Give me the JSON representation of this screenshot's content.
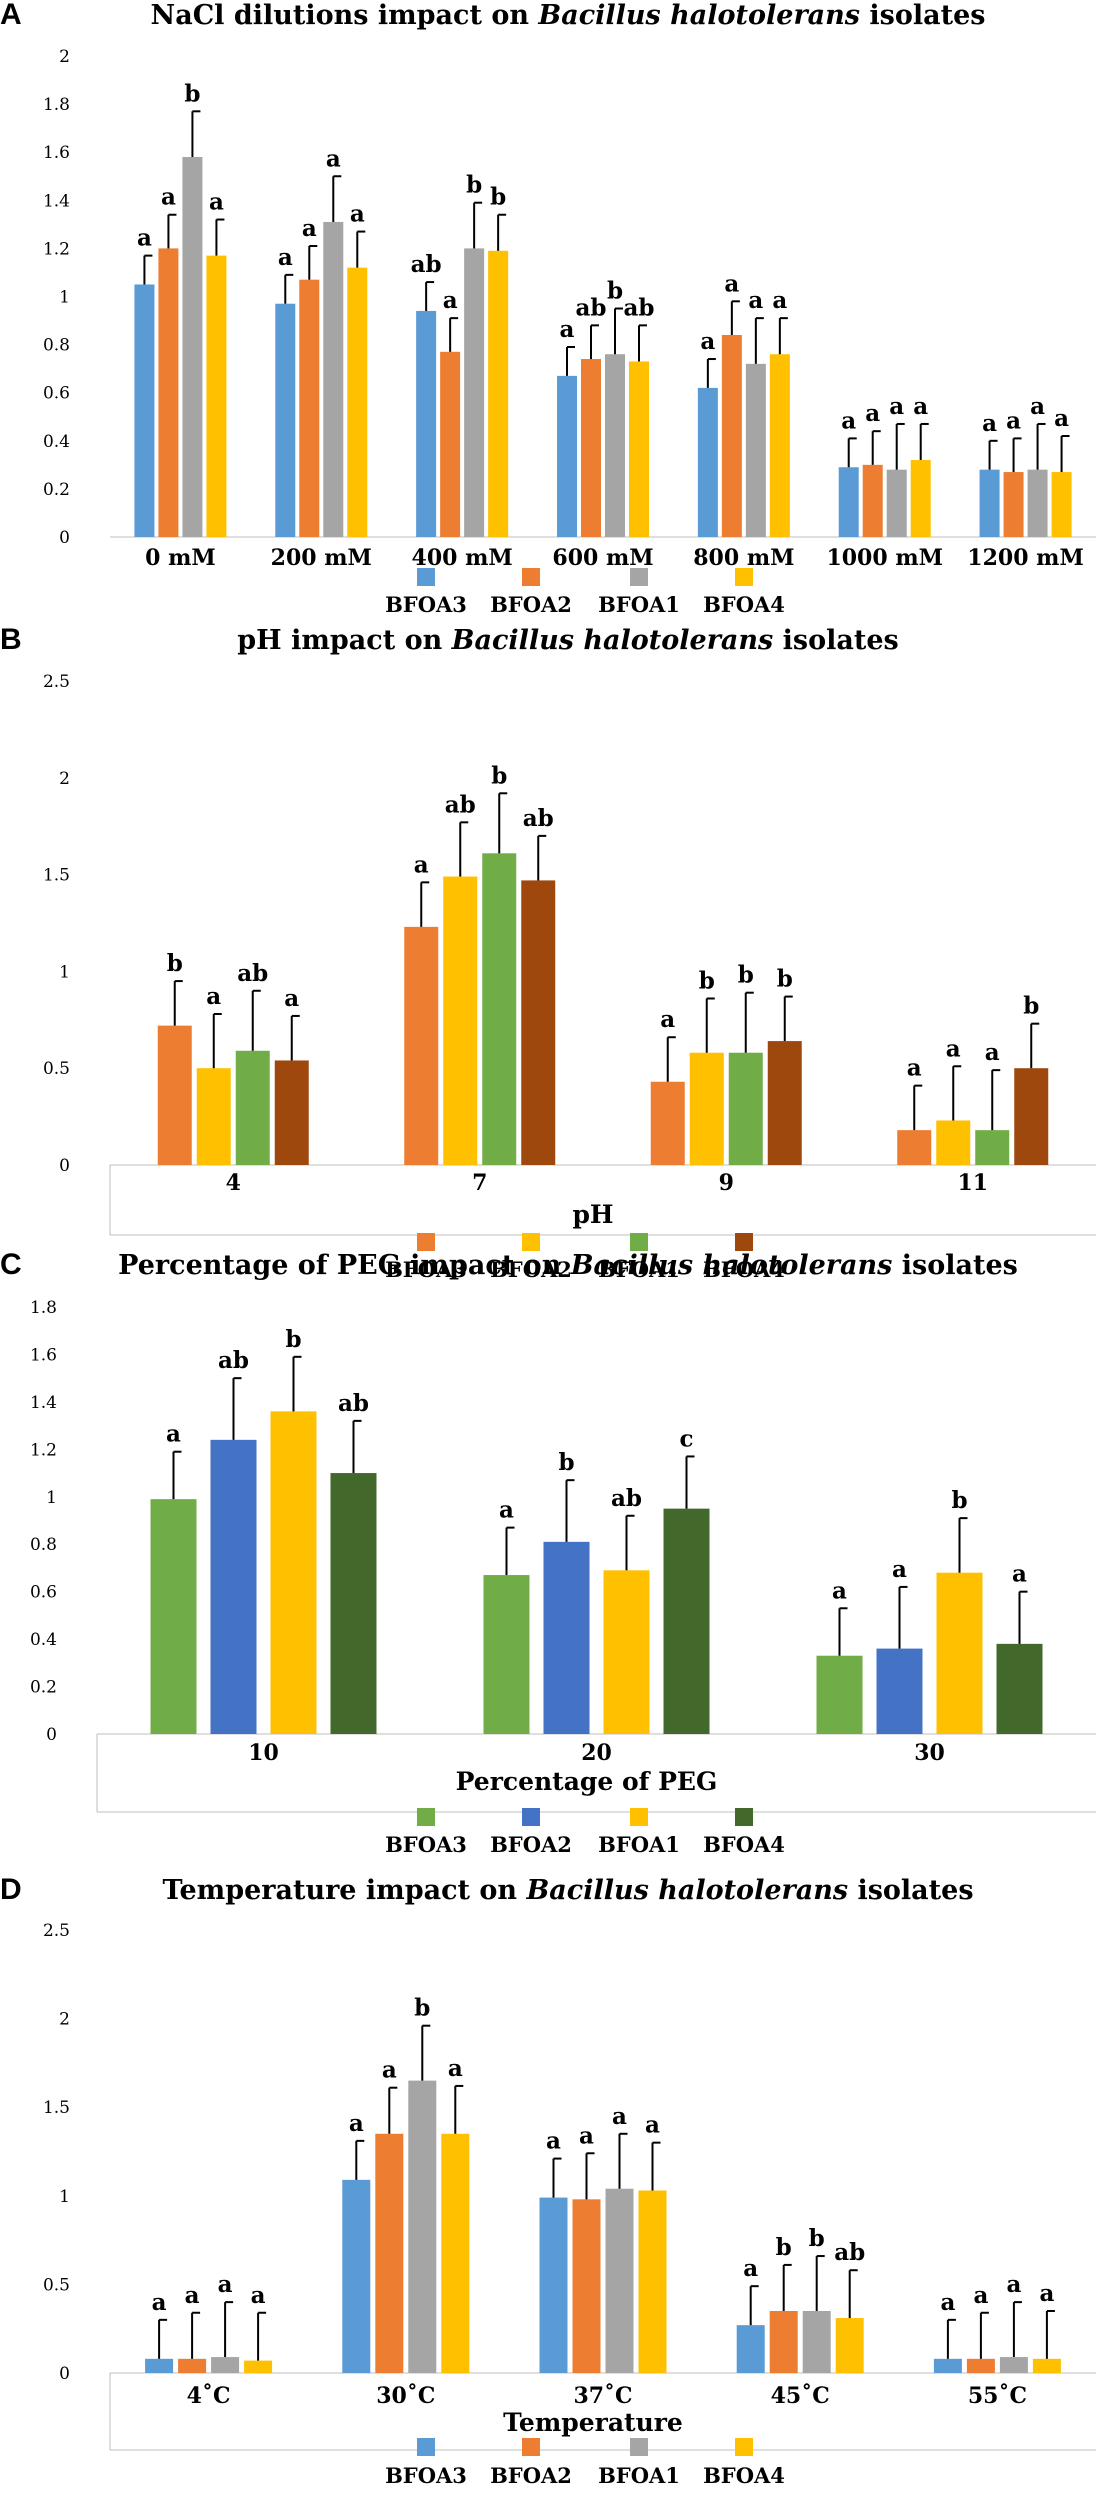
{
  "panels": [
    {
      "letter": "A"
    },
    {
      "letter": "B"
    },
    {
      "letter": "C"
    },
    {
      "letter": "D"
    }
  ],
  "chart_data": [
    {
      "type": "bar",
      "title_prefix": "NaCl dilutions impact on ",
      "title_species": "Bacillus halotolerans",
      "title_suffix": " isolates",
      "xlabel": "",
      "ylabel": "",
      "ylim": [
        0,
        2
      ],
      "yticks": [
        "0",
        "0.2",
        "0.4",
        "0.6",
        "0.8",
        "1",
        "1.2",
        "1.4",
        "1.6",
        "1.8",
        "2"
      ],
      "categories": [
        "0 mM",
        "200 mM",
        "400 mM",
        "600 mM",
        "800 mM",
        "1000 mM",
        "1200 mM"
      ],
      "series": [
        {
          "name": "BFOA3",
          "color": "#5B9BD5",
          "values": [
            1.05,
            0.97,
            0.94,
            0.67,
            0.62,
            0.29,
            0.28
          ],
          "errors": [
            0.12,
            0.12,
            0.12,
            0.12,
            0.12,
            0.12,
            0.12
          ],
          "labels": [
            "a",
            "a",
            "ab",
            "a",
            "a",
            "a",
            "a"
          ]
        },
        {
          "name": "BFOA2",
          "color": "#ED7D31",
          "values": [
            1.2,
            1.07,
            0.77,
            0.74,
            0.84,
            0.3,
            0.27
          ],
          "errors": [
            0.14,
            0.14,
            0.14,
            0.14,
            0.14,
            0.14,
            0.14
          ],
          "labels": [
            "a",
            "a",
            "a",
            "ab",
            "a",
            "a",
            "a"
          ]
        },
        {
          "name": "BFOA1",
          "color": "#A5A5A5",
          "values": [
            1.58,
            1.31,
            1.2,
            0.76,
            0.72,
            0.28,
            0.28
          ],
          "errors": [
            0.19,
            0.19,
            0.19,
            0.19,
            0.19,
            0.19,
            0.19
          ],
          "labels": [
            "b",
            "a",
            "b",
            "b",
            "a",
            "a",
            "a"
          ]
        },
        {
          "name": "BFOA4",
          "color": "#FFC000",
          "values": [
            1.17,
            1.12,
            1.19,
            0.73,
            0.76,
            0.32,
            0.27
          ],
          "errors": [
            0.15,
            0.15,
            0.15,
            0.15,
            0.15,
            0.15,
            0.15
          ],
          "labels": [
            "a",
            "a",
            "b",
            "ab",
            "a",
            "a",
            "a"
          ]
        }
      ]
    },
    {
      "type": "bar",
      "title_prefix": "pH impact on ",
      "title_species": "Bacillus halotolerans",
      "title_suffix": " isolates",
      "xlabel": "pH",
      "ylabel": "",
      "ylim": [
        0,
        2.5
      ],
      "yticks": [
        "0",
        "0.5",
        "1",
        "1.5",
        "2",
        "2.5"
      ],
      "categories": [
        "4",
        "7",
        "9",
        "11"
      ],
      "series": [
        {
          "name": "BFOA3",
          "color": "#ED7D31",
          "values": [
            0.72,
            1.23,
            0.43,
            0.18
          ],
          "errors": [
            0.23,
            0.23,
            0.23,
            0.23
          ],
          "labels": [
            "b",
            "a",
            "a",
            "a"
          ]
        },
        {
          "name": "BFOA2",
          "color": "#FFC000",
          "values": [
            0.5,
            1.49,
            0.58,
            0.23
          ],
          "errors": [
            0.28,
            0.28,
            0.28,
            0.28
          ],
          "labels": [
            "a",
            "ab",
            "b",
            "a"
          ]
        },
        {
          "name": "BFOA1",
          "color": "#70AD47",
          "values": [
            0.59,
            1.61,
            0.58,
            0.18
          ],
          "errors": [
            0.31,
            0.31,
            0.31,
            0.31
          ],
          "labels": [
            "ab",
            "b",
            "b",
            "a"
          ]
        },
        {
          "name": "BFOA4",
          "color": "#9E480E",
          "values": [
            0.54,
            1.47,
            0.64,
            0.5
          ],
          "errors": [
            0.23,
            0.23,
            0.23,
            0.23
          ],
          "labels": [
            "a",
            "ab",
            "b",
            "b"
          ]
        }
      ]
    },
    {
      "type": "bar",
      "title_prefix": "Percentage of PEG impact on ",
      "title_species": "Bacillus halotolerans",
      "title_suffix": " isolates",
      "xlabel": "Percentage of PEG",
      "ylabel": "",
      "ylim": [
        0,
        1.8
      ],
      "yticks": [
        "0",
        "0.2",
        "0.4",
        "0.6",
        "0.8",
        "1",
        "1.2",
        "1.4",
        "1.6",
        "1.8"
      ],
      "categories": [
        "10",
        "20",
        "30"
      ],
      "series": [
        {
          "name": "BFOA3",
          "color": "#70AD47",
          "values": [
            0.99,
            0.67,
            0.33
          ],
          "errors": [
            0.2,
            0.2,
            0.2
          ],
          "labels": [
            "a",
            "a",
            "a"
          ]
        },
        {
          "name": "BFOA2",
          "color": "#4472C4",
          "values": [
            1.24,
            0.81,
            0.36
          ],
          "errors": [
            0.26,
            0.26,
            0.26
          ],
          "labels": [
            "ab",
            "b",
            "a"
          ]
        },
        {
          "name": "BFOA1",
          "color": "#FFC000",
          "values": [
            1.36,
            0.69,
            0.68
          ],
          "errors": [
            0.23,
            0.23,
            0.23
          ],
          "labels": [
            "b",
            "ab",
            "b"
          ]
        },
        {
          "name": "BFOA4",
          "color": "#43682B",
          "values": [
            1.1,
            0.95,
            0.38
          ],
          "errors": [
            0.22,
            0.22,
            0.22
          ],
          "labels": [
            "ab",
            "c",
            "a"
          ]
        }
      ]
    },
    {
      "type": "bar",
      "title_prefix": "Temperature impact on ",
      "title_species": "Bacillus halotolerans",
      "title_suffix": " isolates",
      "xlabel": "Temperature",
      "ylabel": "",
      "ylim": [
        0,
        2.5
      ],
      "yticks": [
        "0",
        "0.5",
        "1",
        "1.5",
        "2",
        "2.5"
      ],
      "categories": [
        "4˚C",
        "30˚C",
        "37˚C",
        "45˚C",
        "55˚C"
      ],
      "series": [
        {
          "name": "BFOA3",
          "color": "#5B9BD5",
          "values": [
            0.08,
            1.09,
            0.99,
            0.27,
            0.08
          ],
          "errors": [
            0.22,
            0.22,
            0.22,
            0.22,
            0.22
          ],
          "labels": [
            "a",
            "a",
            "a",
            "a",
            "a"
          ]
        },
        {
          "name": "BFOA2",
          "color": "#ED7D31",
          "values": [
            0.08,
            1.35,
            0.98,
            0.35,
            0.08
          ],
          "errors": [
            0.26,
            0.26,
            0.26,
            0.26,
            0.26
          ],
          "labels": [
            "a",
            "a",
            "a",
            "b",
            "a"
          ]
        },
        {
          "name": "BFOA1",
          "color": "#A5A5A5",
          "values": [
            0.09,
            1.65,
            1.04,
            0.35,
            0.09
          ],
          "errors": [
            0.31,
            0.31,
            0.31,
            0.31,
            0.31
          ],
          "labels": [
            "a",
            "b",
            "a",
            "b",
            "a"
          ]
        },
        {
          "name": "BFOA4",
          "color": "#FFC000",
          "values": [
            0.07,
            1.35,
            1.03,
            0.31,
            0.08
          ],
          "errors": [
            0.27,
            0.27,
            0.27,
            0.27,
            0.27
          ],
          "labels": [
            "a",
            "a",
            "a",
            "ab",
            "a"
          ]
        }
      ]
    }
  ]
}
